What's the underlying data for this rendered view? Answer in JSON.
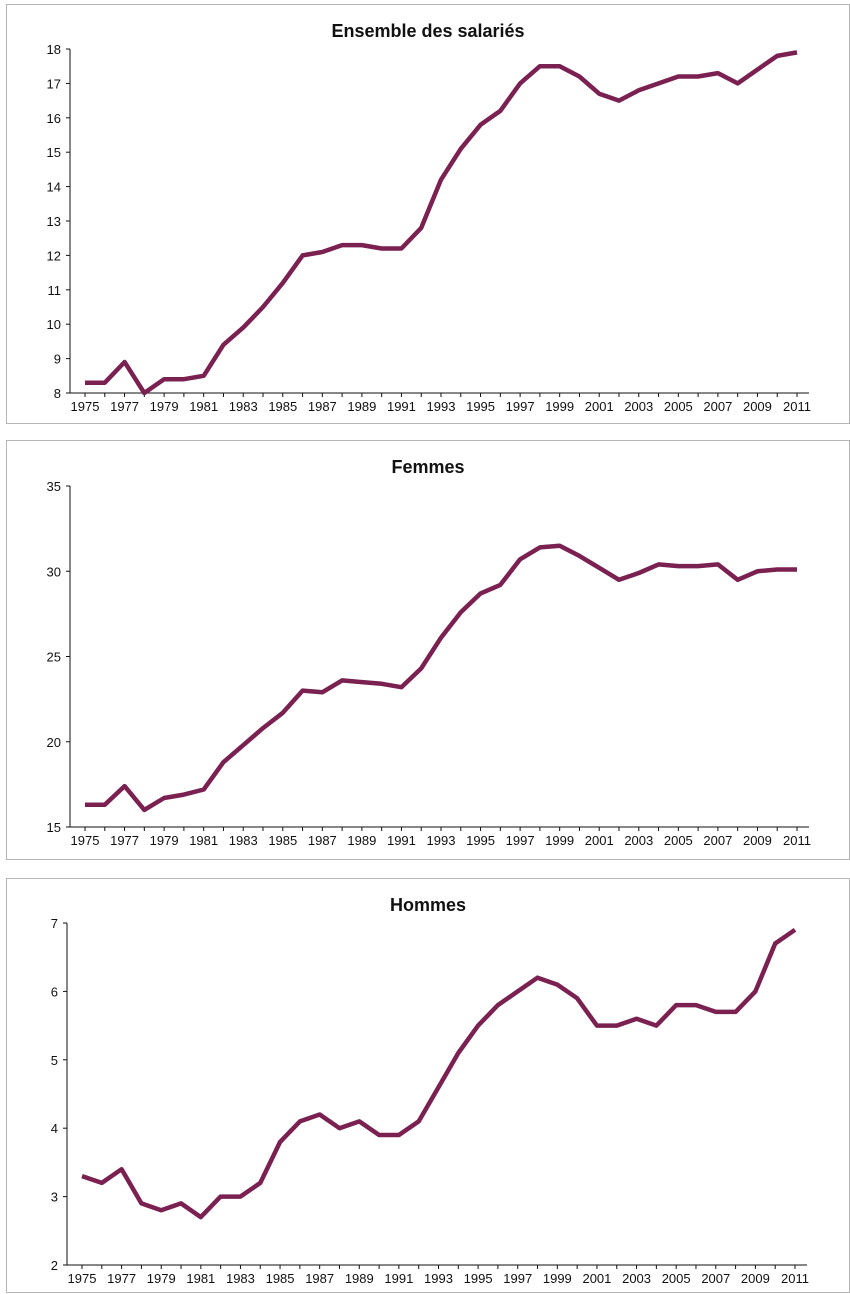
{
  "chart_data": [
    {
      "type": "line",
      "title": "Ensemble des salariés",
      "xlabel": "",
      "ylabel": "",
      "ylim": [
        8,
        18
      ],
      "xlim": [
        1975,
        2011
      ],
      "grid": false,
      "line_color": "#7B2151",
      "yticks": [
        8,
        9,
        10,
        11,
        12,
        13,
        14,
        15,
        16,
        17,
        18
      ],
      "xticks": [
        1975,
        1977,
        1979,
        1981,
        1983,
        1985,
        1987,
        1989,
        1991,
        1993,
        1995,
        1997,
        1999,
        2001,
        2003,
        2005,
        2007,
        2009,
        2011
      ],
      "series": [
        {
          "x": [
            1975,
            1976,
            1977,
            1978,
            1979,
            1980,
            1981,
            1982,
            1983,
            1984,
            1985,
            1986,
            1987,
            1988,
            1989,
            1990,
            1991,
            1992,
            1993,
            1994,
            1995,
            1996,
            1997,
            1998,
            1999,
            2000,
            2001,
            2002,
            2003,
            2004,
            2005,
            2006,
            2007,
            2008,
            2009,
            2010,
            2011
          ],
          "values": [
            8.3,
            8.3,
            8.9,
            8.0,
            8.4,
            8.4,
            8.5,
            9.4,
            9.9,
            10.5,
            11.2,
            12.0,
            12.1,
            12.3,
            12.3,
            12.2,
            12.2,
            12.8,
            14.2,
            15.1,
            15.8,
            16.2,
            17.0,
            17.5,
            17.5,
            17.2,
            16.7,
            16.5,
            16.8,
            17.0,
            17.2,
            17.2,
            17.3,
            17.0,
            17.4,
            17.8,
            17.9
          ]
        }
      ]
    },
    {
      "type": "line",
      "title": "Femmes",
      "xlabel": "",
      "ylabel": "",
      "ylim": [
        15,
        35
      ],
      "xlim": [
        1975,
        2011
      ],
      "grid": false,
      "line_color": "#7B2151",
      "yticks": [
        15,
        20,
        25,
        30,
        35
      ],
      "xticks": [
        1975,
        1977,
        1979,
        1981,
        1983,
        1985,
        1987,
        1989,
        1991,
        1993,
        1995,
        1997,
        1999,
        2001,
        2003,
        2005,
        2007,
        2009,
        2011
      ],
      "series": [
        {
          "x": [
            1975,
            1976,
            1977,
            1978,
            1979,
            1980,
            1981,
            1982,
            1983,
            1984,
            1985,
            1986,
            1987,
            1988,
            1989,
            1990,
            1991,
            1992,
            1993,
            1994,
            1995,
            1996,
            1997,
            1998,
            1999,
            2000,
            2001,
            2002,
            2003,
            2004,
            2005,
            2006,
            2007,
            2008,
            2009,
            2010,
            2011
          ],
          "values": [
            16.3,
            16.3,
            17.4,
            16.0,
            16.7,
            16.9,
            17.2,
            18.8,
            19.8,
            20.8,
            21.7,
            23.0,
            22.9,
            23.6,
            23.5,
            23.4,
            23.2,
            24.3,
            26.1,
            27.6,
            28.7,
            29.2,
            30.7,
            31.4,
            31.5,
            30.9,
            30.2,
            29.5,
            29.9,
            30.4,
            30.3,
            30.3,
            30.4,
            29.5,
            30.0,
            30.1,
            30.1
          ]
        }
      ]
    },
    {
      "type": "line",
      "title": "Hommes",
      "xlabel": "",
      "ylabel": "",
      "ylim": [
        2,
        7
      ],
      "xlim": [
        1975,
        2011
      ],
      "grid": false,
      "line_color": "#7B2151",
      "yticks": [
        2,
        3,
        4,
        5,
        6,
        7
      ],
      "xticks": [
        1975,
        1977,
        1979,
        1981,
        1983,
        1985,
        1987,
        1989,
        1991,
        1993,
        1995,
        1997,
        1999,
        2001,
        2003,
        2005,
        2007,
        2009,
        2011
      ],
      "series": [
        {
          "x": [
            1975,
            1976,
            1977,
            1978,
            1979,
            1980,
            1981,
            1982,
            1983,
            1984,
            1985,
            1986,
            1987,
            1988,
            1989,
            1990,
            1991,
            1992,
            1993,
            1994,
            1995,
            1996,
            1997,
            1998,
            1999,
            2000,
            2001,
            2002,
            2003,
            2004,
            2005,
            2006,
            2007,
            2008,
            2009,
            2010,
            2011
          ],
          "values": [
            3.3,
            3.2,
            3.4,
            2.9,
            2.8,
            2.9,
            2.7,
            3.0,
            3.0,
            3.2,
            3.8,
            4.1,
            4.2,
            4.0,
            4.1,
            3.9,
            3.9,
            4.1,
            4.6,
            5.1,
            5.5,
            5.8,
            6.0,
            6.2,
            6.1,
            5.9,
            5.5,
            5.5,
            5.6,
            5.5,
            5.8,
            5.8,
            5.7,
            5.7,
            6.0,
            6.7,
            6.9
          ]
        }
      ]
    }
  ]
}
